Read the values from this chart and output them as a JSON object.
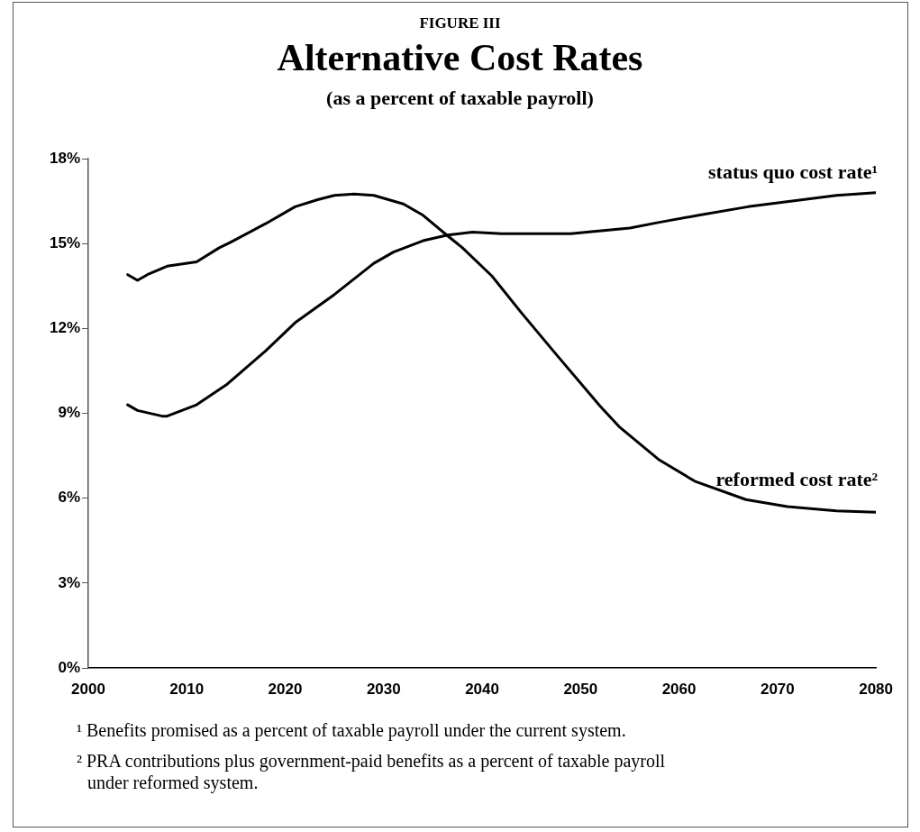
{
  "chart_data": {
    "type": "line",
    "title": "Alternative Cost Rates",
    "subtitle": "(as a percent of taxable payroll)",
    "annotations": [
      "FIGURE III",
      "¹ Benefits promised as a percent of taxable payroll under the current system.",
      "² PRA contributions plus government-paid benefits as a percent of taxable payroll under reformed system."
    ],
    "series": [
      {
        "name": "status quo cost rate¹",
        "color": "#000000",
        "x": [
          2004,
          2005,
          2007.5,
          2008,
          2011,
          2014,
          2018,
          2021,
          2025,
          2029,
          2031,
          2034,
          2036.5,
          2039,
          2042,
          2049,
          2055,
          2058,
          2062,
          2067,
          2071.5,
          2076,
          2080
        ],
        "values": [
          9.3,
          9.1,
          8.9,
          8.9,
          9.3,
          10.0,
          11.2,
          12.2,
          13.2,
          14.3,
          14.7,
          15.1,
          15.3,
          15.4,
          15.35,
          15.35,
          15.55,
          15.75,
          16.0,
          16.3,
          16.5,
          16.7,
          16.8
        ]
      },
      {
        "name": "reformed cost rate²",
        "color": "#000000",
        "x": [
          2004,
          2005,
          2006,
          2008,
          2011,
          2013.3,
          2014.2,
          2018,
          2021,
          2023.3,
          2025,
          2027,
          2029,
          2032,
          2034,
          2036.4,
          2038,
          2041,
          2044,
          2047.6,
          2052,
          2054,
          2058,
          2061.6,
          2066.8,
          2071,
          2076,
          2080
        ],
        "values": [
          13.9,
          13.7,
          13.9,
          14.2,
          14.35,
          14.85,
          15.0,
          15.7,
          16.3,
          16.55,
          16.7,
          16.75,
          16.7,
          16.4,
          16.0,
          15.3,
          14.85,
          13.85,
          12.55,
          11.05,
          9.25,
          8.5,
          7.35,
          6.6,
          5.95,
          5.7,
          5.55,
          5.5
        ]
      }
    ],
    "xlim": [
      2000,
      2080
    ],
    "xticks": [
      2000,
      2010,
      2020,
      2030,
      2040,
      2050,
      2060,
      2070,
      2080
    ],
    "ylim": [
      0,
      18
    ],
    "yticks": [
      {
        "value": 0,
        "label": "0%"
      },
      {
        "value": 3,
        "label": "3%"
      },
      {
        "value": 6,
        "label": "6%"
      },
      {
        "value": 9,
        "label": "9%"
      },
      {
        "value": 12,
        "label": "12%"
      },
      {
        "value": 15,
        "label": "15%"
      },
      {
        "value": 18,
        "label": "18%"
      }
    ],
    "grid": false,
    "legend": false,
    "marker": "none",
    "line_style": "solid"
  }
}
